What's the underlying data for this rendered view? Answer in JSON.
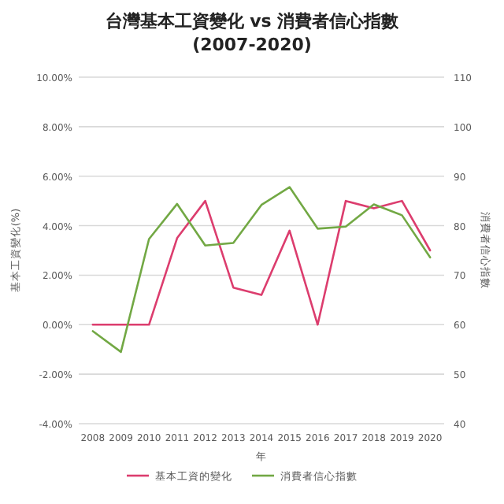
{
  "chart_data": {
    "type": "line",
    "title": "台灣基本工資變化 vs 消費者信心指數\n(2007-2020)",
    "xlabel": "年",
    "ylabel": "基本工資變化(%)",
    "y2label": "消費者信心指數",
    "categories": [
      "2008",
      "2009",
      "2010",
      "2011",
      "2012",
      "2013",
      "2014",
      "2015",
      "2016",
      "2017",
      "2018",
      "2019",
      "2020"
    ],
    "series": [
      {
        "name": "基本工資的變化",
        "color": "#dc3d6e",
        "values": [
          0,
          0,
          0,
          3.5,
          5.0,
          1.5,
          1.2,
          3.8,
          0,
          5.0,
          4.7,
          5.0,
          3.0
        ]
      },
      {
        "name": "消費者信心指數",
        "color": "#72a844",
        "axis": "y2",
        "values": [
          58.7,
          54.5,
          77.3,
          84.4,
          76.0,
          76.5,
          84.2,
          87.8,
          79.4,
          79.8,
          84.3,
          82.1,
          73.6
        ]
      }
    ],
    "ylim": [
      -4,
      10
    ],
    "yticks": [
      {
        "value": -4,
        "label": "-4.00%"
      },
      {
        "value": -2,
        "label": "-2.00%"
      },
      {
        "value": 0,
        "label": "0.00%"
      },
      {
        "value": 2,
        "label": "2.00%"
      },
      {
        "value": 4,
        "label": "4.00%"
      },
      {
        "value": 6,
        "label": "6.00%"
      },
      {
        "value": 8,
        "label": "8.00%"
      },
      {
        "value": 10,
        "label": "10.00%"
      }
    ],
    "y2lim": [
      40,
      110
    ],
    "y2ticks": [
      40,
      50,
      60,
      70,
      80,
      90,
      100,
      110
    ],
    "grid": "y",
    "legend": "bottom",
    "marker": "none",
    "line_style": "solid"
  }
}
